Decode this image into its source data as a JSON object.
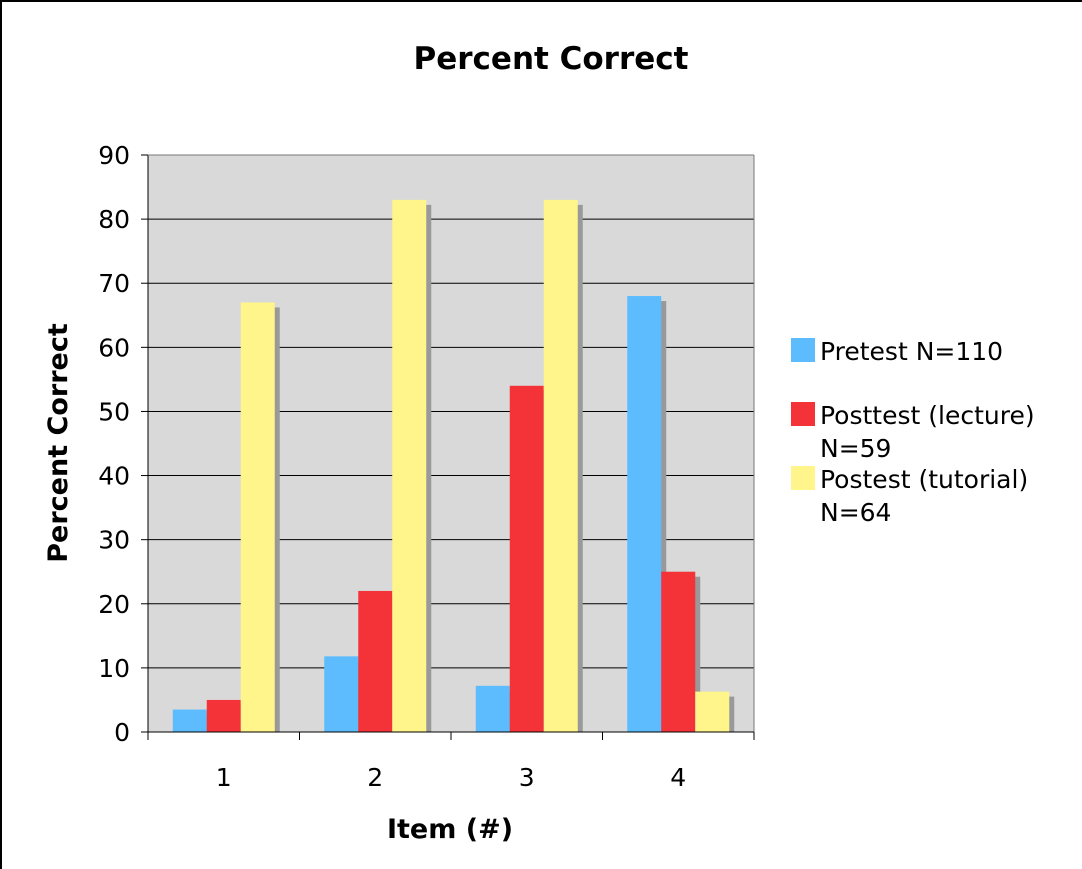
{
  "chart_data": {
    "type": "bar",
    "title": "Percent Correct",
    "xlabel": "Item (#)",
    "ylabel": "Percent Correct",
    "categories": [
      "1",
      "2",
      "3",
      "4"
    ],
    "ylim": [
      0,
      90
    ],
    "yticks": [
      0,
      10,
      20,
      30,
      40,
      50,
      60,
      70,
      80,
      90
    ],
    "grid": true,
    "legend_position": "right",
    "series": [
      {
        "name": "Pretest N=110",
        "legend_lines": [
          "Pretest N=110"
        ],
        "color": "#5cbcfe",
        "values": [
          3.5,
          11.8,
          7.2,
          68
        ]
      },
      {
        "name": "Posttest (lecture) N=59",
        "legend_lines": [
          "Posttest (lecture)",
          "N=59"
        ],
        "color": "#f33338",
        "values": [
          5,
          22,
          54,
          25
        ]
      },
      {
        "name": "Postest (tutorial) N=64",
        "legend_lines": [
          "Postest (tutorial)",
          "N=64"
        ],
        "color": "#fff58a",
        "values": [
          67,
          83,
          83,
          6.3
        ]
      }
    ],
    "colors": {
      "plot_background": "#d9d9d9",
      "gridline": "#000000",
      "shadow": "#999999"
    }
  }
}
